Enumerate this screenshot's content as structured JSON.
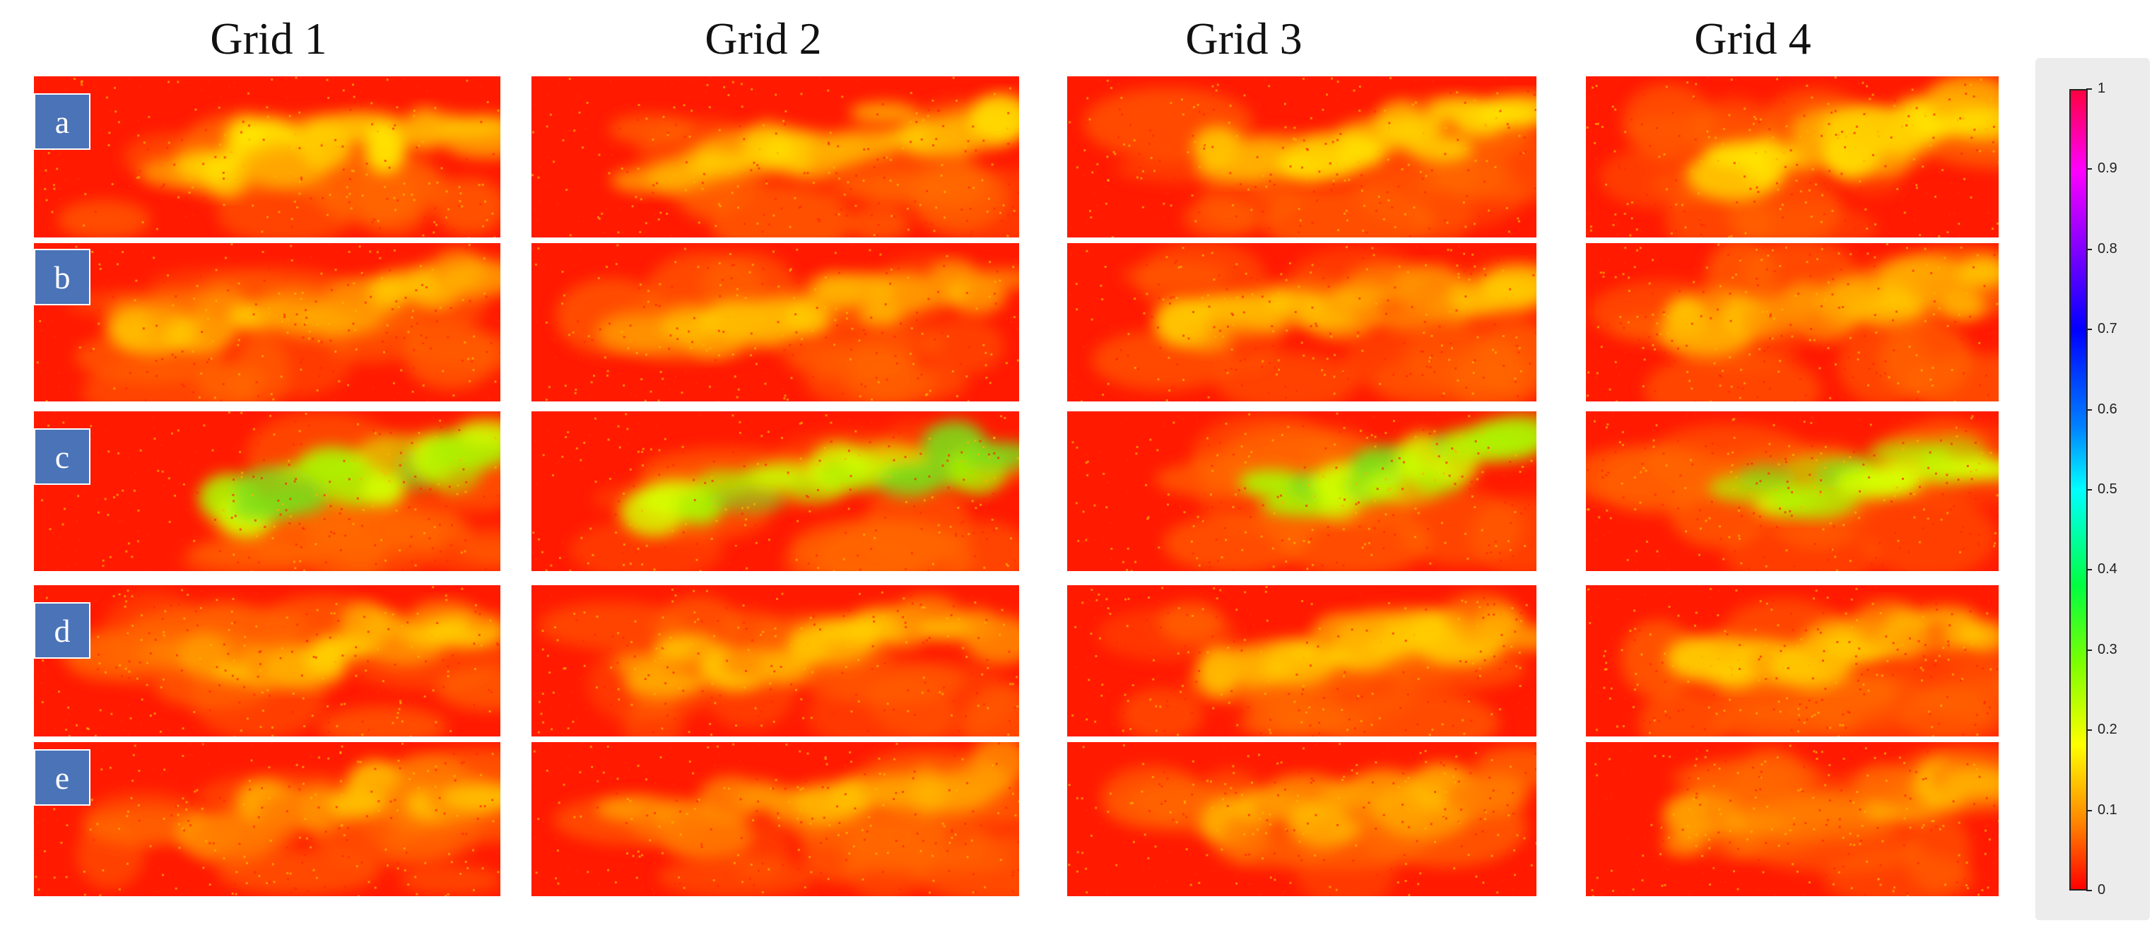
{
  "columns": [
    "Grid 1",
    "Grid 2",
    "Grid 3",
    "Grid 4"
  ],
  "rows": [
    "a",
    "b",
    "c",
    "d",
    "e"
  ],
  "colorbar": {
    "ticks": [
      "0",
      "0.1",
      "0.2",
      "0.3",
      "0.4",
      "0.5",
      "0.6",
      "0.7",
      "0.8",
      "0.9",
      "1"
    ],
    "colors": [
      "#ff0000",
      "#ff8000",
      "#ffff00",
      "#80ff00",
      "#00ff40",
      "#00ffff",
      "#0080ff",
      "#0000ff",
      "#8000ff",
      "#ff00ff",
      "#ff0040"
    ]
  }
}
